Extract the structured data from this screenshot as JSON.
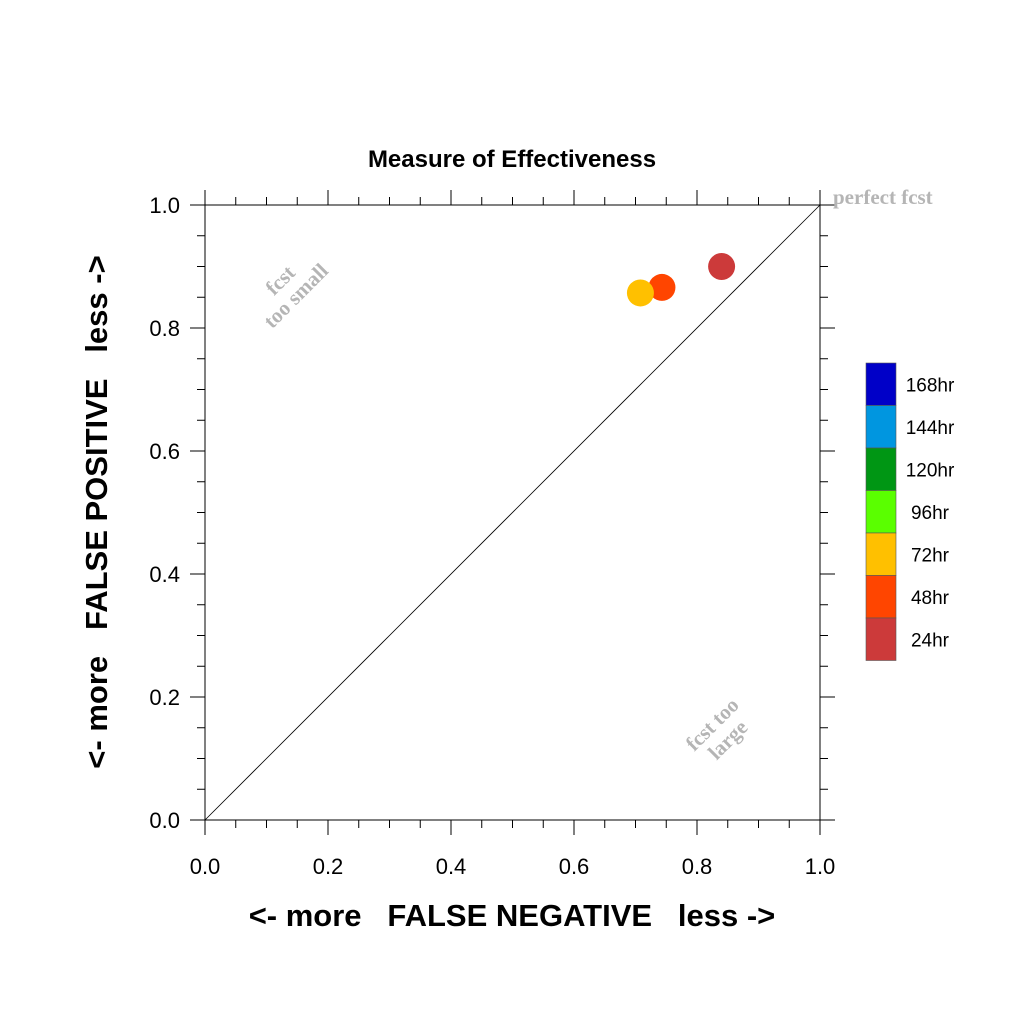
{
  "chart_data": {
    "type": "scatter",
    "title": "Measure of Effectiveness",
    "xlabel": "<- more   FALSE NEGATIVE   less ->",
    "ylabel": "<- more   FALSE POSITIVE   less ->",
    "xlim": [
      0.0,
      1.0
    ],
    "ylim": [
      0.0,
      1.0
    ],
    "xticks": [
      "0.0",
      "0.2",
      "0.4",
      "0.6",
      "0.8",
      "1.0"
    ],
    "yticks": [
      "0.0",
      "0.2",
      "0.4",
      "0.6",
      "0.8",
      "1.0"
    ],
    "grid": false,
    "diagonal_line": true,
    "annotations": {
      "perfect": "perfect fcst",
      "too_small_line1": "fcst",
      "too_small_line2": "too small",
      "too_large_line1": "fcst too",
      "too_large_line2": "large"
    },
    "points": [
      {
        "name": "24hr",
        "x": 0.84,
        "y": 0.9,
        "color": "#cc3a3a"
      },
      {
        "name": "48hr",
        "x": 0.743,
        "y": 0.866,
        "color": "#ff4500"
      },
      {
        "name": "72hr",
        "x": 0.708,
        "y": 0.857,
        "color": "#ffc000"
      }
    ],
    "legend": {
      "placement": "right",
      "entries": [
        {
          "label": "168hr",
          "color": "#0000c8"
        },
        {
          "label": "144hr",
          "color": "#0096e0"
        },
        {
          "label": "120hr",
          "color": "#009614"
        },
        {
          "label": "96hr",
          "color": "#5aff00"
        },
        {
          "label": "72hr",
          "color": "#ffc000"
        },
        {
          "label": "48hr",
          "color": "#ff4500"
        },
        {
          "label": "24hr",
          "color": "#cc3a3a"
        }
      ]
    }
  }
}
